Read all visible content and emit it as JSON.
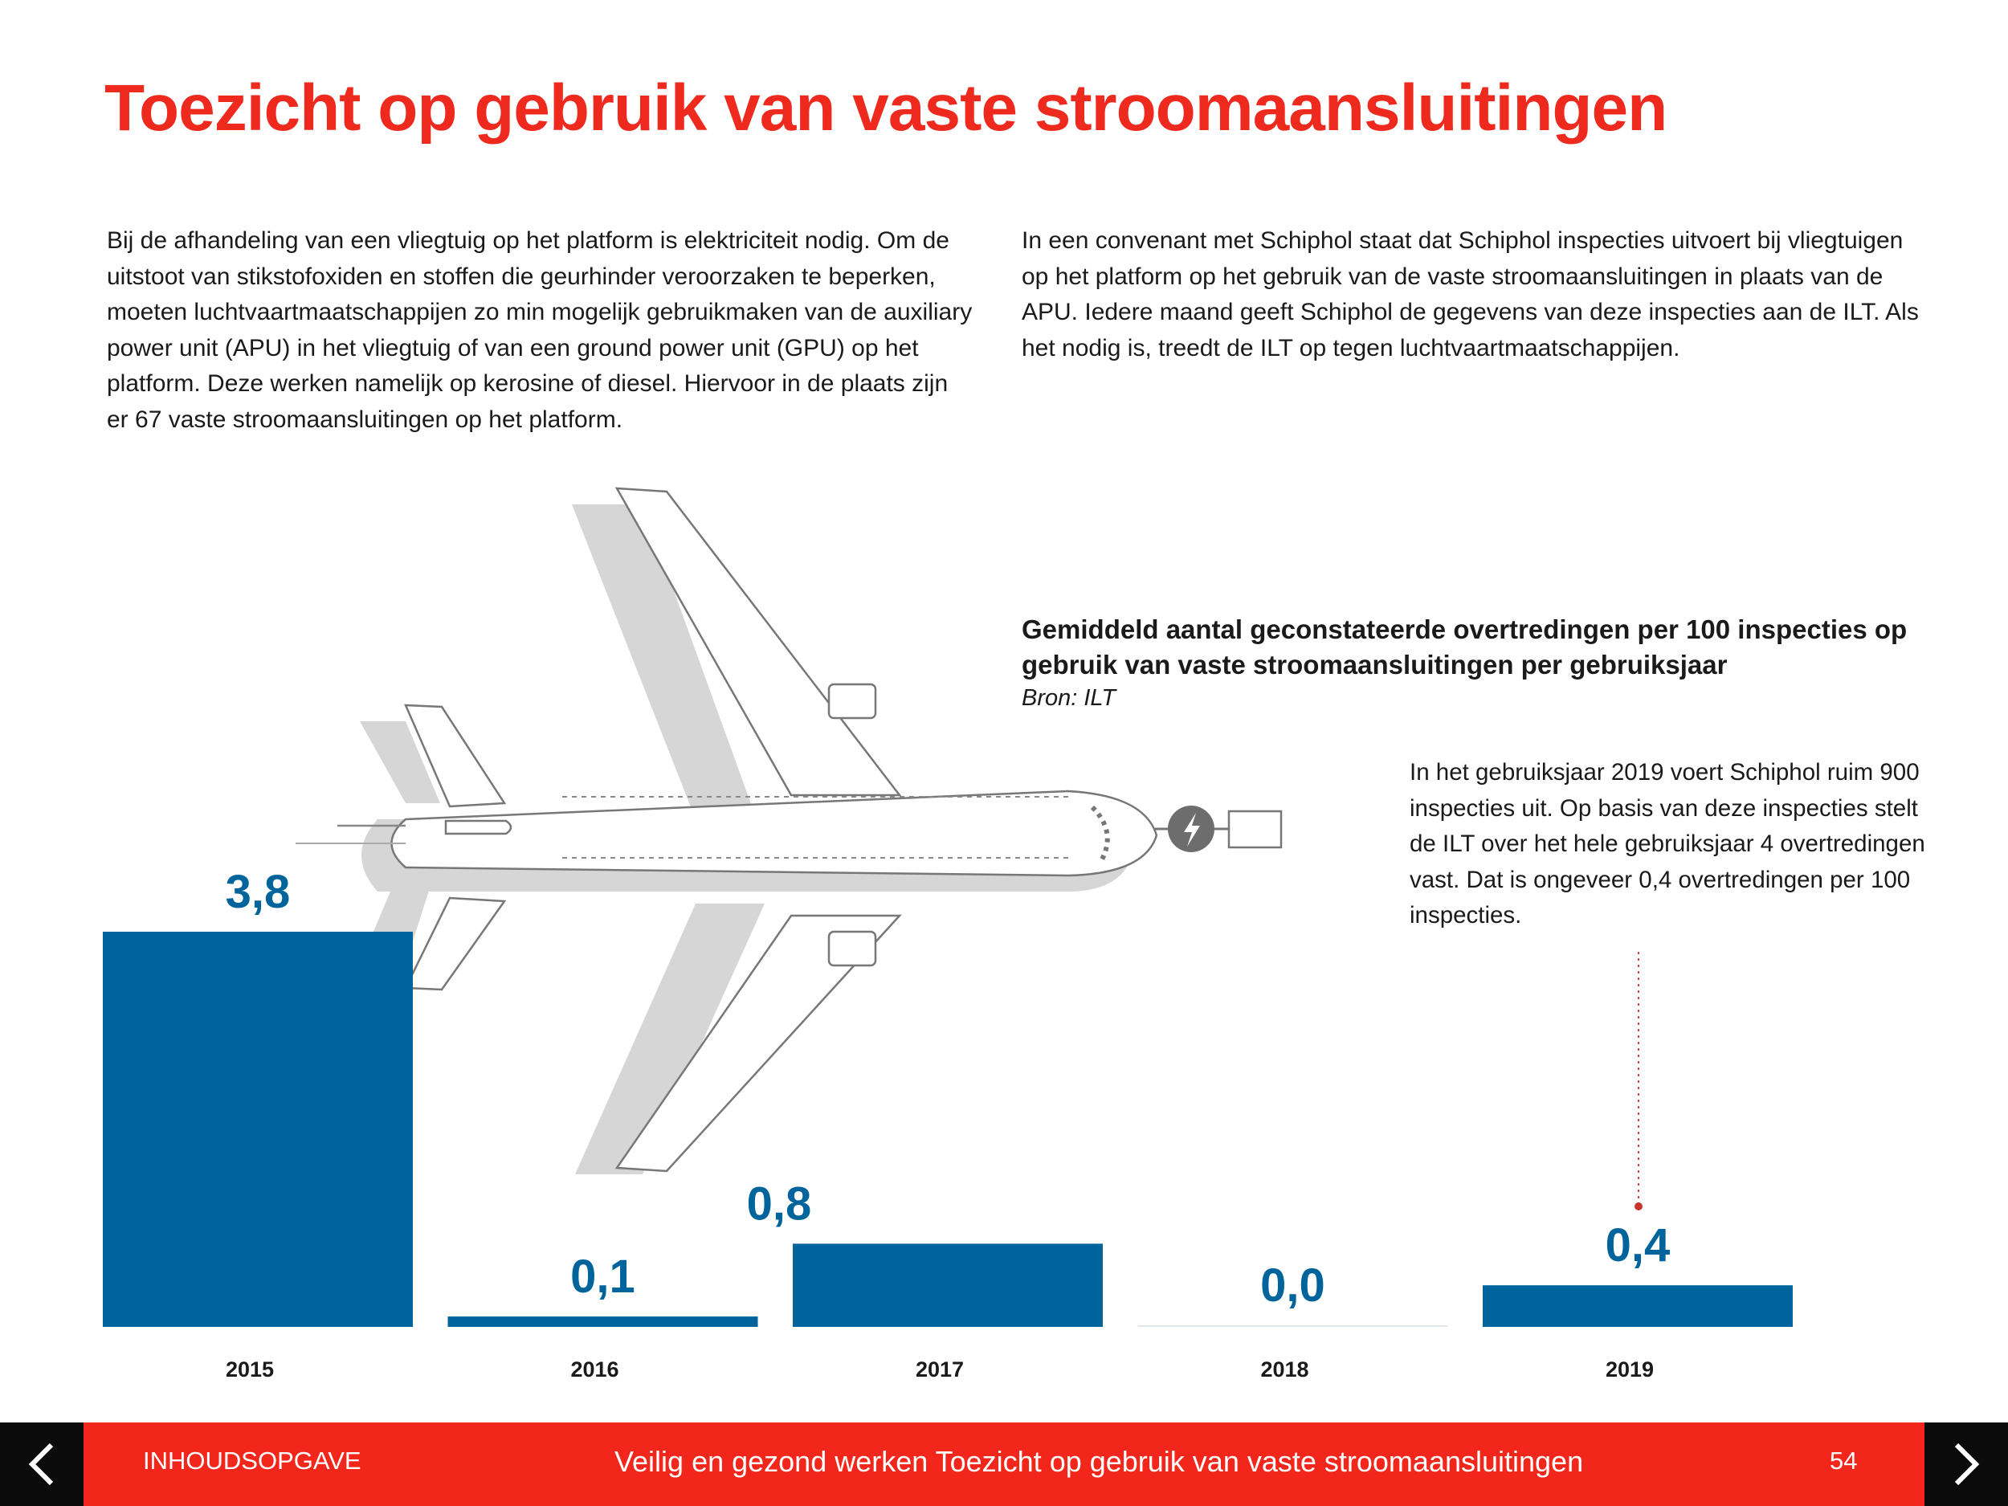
{
  "page": {
    "title": "Toezicht op gebruik van vaste stroomaansluitingen",
    "intro_left": "Bij de afhandeling van een vliegtuig op het platform is elektriciteit nodig. Om de uitstoot van stikstofoxiden en stoffen die geurhinder veroorzaken te beperken, moeten luchtvaartmaatschappijen zo min mogelijk gebruikmaken van de auxiliary power unit (APU) in het vliegtuig of van een ground power unit (GPU) op het platform. Deze werken namelijk op kerosine of diesel. Hiervoor in de plaats zijn er 67 vaste stroomaansluitingen op het platform.",
    "intro_right": "In een convenant met Schiphol staat dat Schiphol inspecties uitvoert bij vliegtuigen op het platform op het gebruik van de vaste stroomaansluitingen in plaats van de APU. Iedere maand geeft Schiphol de gegevens van deze inspecties aan de ILT. Als het nodig is, treedt de ILT op tegen luchtvaartmaatschappijen.",
    "callout": "In het gebruiksjaar 2019 voert Schiphol ruim 900 inspecties uit. Op basis van deze inspecties stelt de ILT over het hele gebruiksjaar 4 overtredingen vast. Dat is ongeveer 0,4 overtredingen per 100 inspecties.",
    "illustration": "airplane-with-power-connection-icon"
  },
  "chart_data": {
    "type": "bar",
    "title": "Gemiddeld aantal geconstateerde overtredingen per 100 inspecties op gebruik van vaste stroomaansluitingen per gebruiksjaar",
    "source": "Bron: ILT",
    "categories": [
      "2015",
      "2016",
      "2017",
      "2018",
      "2019"
    ],
    "values": [
      3.8,
      0.1,
      0.8,
      0.0,
      0.4
    ],
    "value_labels": [
      "3,8",
      "0,1",
      "0,8",
      "0,0",
      "0,4"
    ],
    "ylim": [
      0,
      3.8
    ],
    "grid": false,
    "legend": "none",
    "bar_color": "#00649c",
    "label_color": "#00649c",
    "highlight_category": "2019"
  },
  "footer": {
    "toc_label": "INHOUDSOPGAVE",
    "section_label": "Veilig en gezond werken  Toezicht op gebruik van vaste stroomaansluitingen",
    "page_number": "54",
    "background": "#f3261b"
  }
}
